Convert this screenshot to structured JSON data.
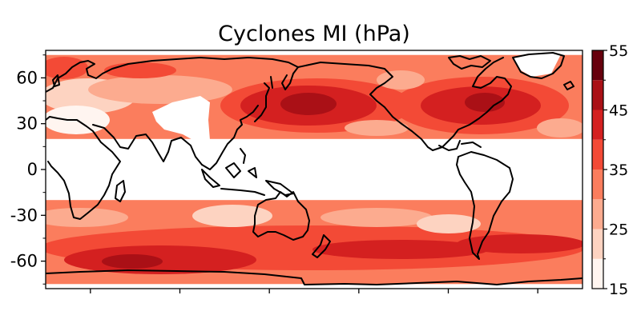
{
  "title": "Cyclones MI (hPa)",
  "map": {
    "projection": "PlateCarree",
    "central_longitude": 150,
    "lon_range": [
      -30,
      330
    ],
    "lat_range": [
      -78,
      78
    ],
    "yticks": [
      {
        "value": 60,
        "label": "60"
      },
      {
        "value": 30,
        "label": "30"
      },
      {
        "value": 0,
        "label": "0"
      },
      {
        "value": -30,
        "label": "-30"
      },
      {
        "value": -60,
        "label": "-60"
      }
    ],
    "data_bands": [
      {
        "name": "northern-hemisphere",
        "lat_range": [
          20,
          75
        ]
      },
      {
        "name": "southern-hemisphere",
        "lat_range": [
          -75,
          -20
        ]
      }
    ]
  },
  "colorbar": {
    "label": "",
    "min": 15,
    "max": 55,
    "levels": [
      15,
      20,
      25,
      30,
      35,
      40,
      45,
      50,
      55
    ],
    "ticks": [
      {
        "value": 55,
        "label": "55"
      },
      {
        "value": 45,
        "label": "45"
      },
      {
        "value": 35,
        "label": "35"
      },
      {
        "value": 25,
        "label": "25"
      },
      {
        "value": 15,
        "label": "15"
      }
    ],
    "colors": [
      "#fff5f0",
      "#fdd3c1",
      "#fcab8f",
      "#fb7d5d",
      "#f34a36",
      "#d42020",
      "#aa1016",
      "#67000d"
    ]
  }
}
